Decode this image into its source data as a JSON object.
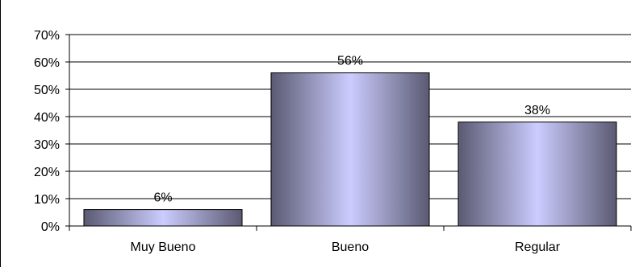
{
  "chart_data": {
    "type": "bar",
    "title": "",
    "xlabel": "",
    "ylabel": "",
    "categories": [
      "Muy Bueno",
      "Bueno",
      "Regular"
    ],
    "values": [
      6,
      56,
      38
    ],
    "value_labels": [
      "6%",
      "56%",
      "38%"
    ],
    "ylim": [
      0,
      70
    ],
    "y_ticks": [
      0,
      10,
      20,
      30,
      40,
      50,
      60,
      70
    ],
    "y_tick_labels": [
      "0%",
      "10%",
      "20%",
      "30%",
      "40%",
      "50%",
      "60%",
      "70%"
    ],
    "grid": true,
    "legend": "none",
    "bar_gradient": {
      "edge": "#5a5a72",
      "center": "#ccccff"
    }
  }
}
